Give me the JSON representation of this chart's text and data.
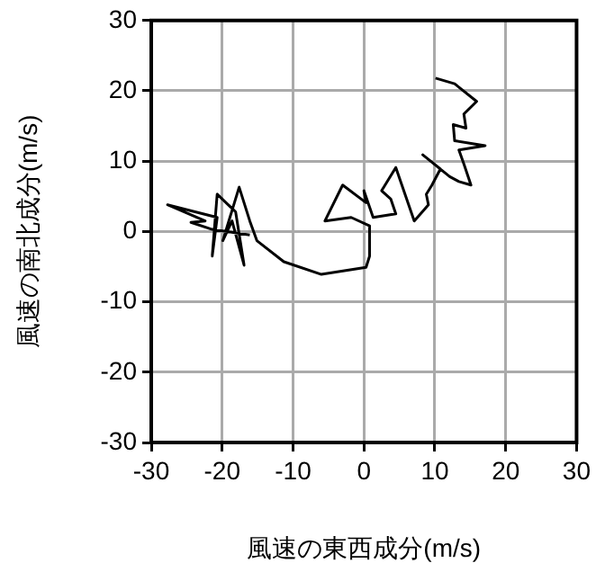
{
  "chart_data": {
    "type": "line",
    "xlabel": "風速の東西成分(m/s)",
    "ylabel": "風速の南北成分(m/s)",
    "xlim": [
      -30,
      30
    ],
    "xticks": [
      -30,
      -20,
      -10,
      0,
      10,
      20,
      30
    ],
    "ylim": [
      -30,
      30
    ],
    "yticks": [
      -30,
      -20,
      -10,
      0,
      10,
      20,
      30
    ],
    "grid": true,
    "marker": "none",
    "line_style": "solid",
    "series": [
      {
        "color": "#000000",
        "x": [
          10.1,
          12.8,
          15.9,
          14.1,
          14.4,
          12.6,
          12.8,
          17.1,
          13.4,
          14.1,
          15.1,
          13.4,
          12.1,
          8.3,
          10.8,
          9.6,
          8.8,
          9.1,
          7.1,
          4.5,
          2.5,
          3.8,
          4.5,
          1.3,
          0,
          0.3,
          -3.0,
          -5.5,
          -1.8,
          0.8,
          0.8,
          0.3,
          -6.0,
          -11.3,
          -15.1,
          -16.1,
          -17.6,
          -19.9,
          -18.6,
          -16.9,
          -18.1,
          -20.7,
          -21.4,
          -20.7,
          -27.7,
          -22.4,
          -24.4,
          -21.4,
          -16.1
        ],
        "values": [
          21.8,
          21.0,
          18.5,
          16.7,
          14.7,
          15.2,
          12.9,
          12.2,
          11.6,
          9.6,
          6.6,
          7.1,
          7.8,
          10.9,
          8.9,
          6.6,
          5.3,
          3.8,
          1.5,
          9.1,
          5.8,
          4.6,
          2.5,
          2.0,
          5.8,
          4.1,
          6.6,
          1.5,
          2.0,
          0.8,
          -3.5,
          -5.1,
          -6.1,
          -4.3,
          -1.3,
          1.5,
          6.3,
          -1.3,
          1.5,
          -4.8,
          2.8,
          5.3,
          -3.5,
          2.0,
          3.8,
          1.5,
          1.3,
          0.3,
          -0.5
        ]
      }
    ]
  }
}
